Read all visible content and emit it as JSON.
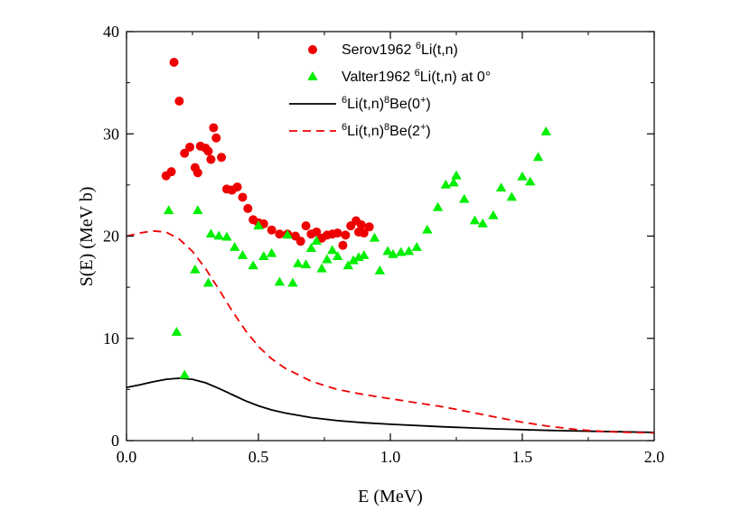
{
  "chart_data": {
    "type": "scatter",
    "title": "",
    "xlabel": "E (MeV)",
    "ylabel": "S(E) (MeV b)",
    "xlim": [
      0.0,
      2.0
    ],
    "ylim": [
      0,
      40
    ],
    "xticks": [
      0.0,
      0.5,
      1.0,
      1.5,
      2.0
    ],
    "xtick_labels": [
      "0.0",
      "0.5",
      "1.0",
      "1.5",
      "2.0"
    ],
    "yticks": [
      0,
      10,
      20,
      30,
      40
    ],
    "ytick_labels": [
      "0",
      "10",
      "20",
      "30",
      "40"
    ],
    "grid": false,
    "legend_position": "top-right",
    "series": [
      {
        "name": "Serov1962",
        "reaction": "Li(t,n)",
        "sup": "6",
        "legend_parts": [
          {
            "t": "Serov1962 ",
            "s": false
          },
          {
            "t": "6",
            "s": true
          },
          {
            "t": "Li(t,n)",
            "s": false
          }
        ],
        "kind": "scatter",
        "marker": "circle",
        "color": "#ee0000",
        "points": [
          [
            0.15,
            25.9
          ],
          [
            0.17,
            26.3
          ],
          [
            0.18,
            37.0
          ],
          [
            0.2,
            33.2
          ],
          [
            0.22,
            28.1
          ],
          [
            0.24,
            28.7
          ],
          [
            0.26,
            26.7
          ],
          [
            0.27,
            26.2
          ],
          [
            0.28,
            28.8
          ],
          [
            0.3,
            28.6
          ],
          [
            0.31,
            28.3
          ],
          [
            0.32,
            27.5
          ],
          [
            0.33,
            30.6
          ],
          [
            0.34,
            29.6
          ],
          [
            0.36,
            27.7
          ],
          [
            0.38,
            24.6
          ],
          [
            0.4,
            24.5
          ],
          [
            0.42,
            24.8
          ],
          [
            0.44,
            23.8
          ],
          [
            0.46,
            22.7
          ],
          [
            0.48,
            21.6
          ],
          [
            0.5,
            21.3
          ],
          [
            0.52,
            21.2
          ],
          [
            0.55,
            20.6
          ],
          [
            0.58,
            20.2
          ],
          [
            0.61,
            20.2
          ],
          [
            0.64,
            20.0
          ],
          [
            0.66,
            19.5
          ],
          [
            0.68,
            21.0
          ],
          [
            0.7,
            20.2
          ],
          [
            0.72,
            20.4
          ],
          [
            0.74,
            19.8
          ],
          [
            0.76,
            20.1
          ],
          [
            0.78,
            20.2
          ],
          [
            0.8,
            20.3
          ],
          [
            0.82,
            19.1
          ],
          [
            0.83,
            20.1
          ],
          [
            0.85,
            21.0
          ],
          [
            0.87,
            21.5
          ],
          [
            0.88,
            20.4
          ],
          [
            0.89,
            21.1
          ],
          [
            0.9,
            20.3
          ],
          [
            0.92,
            20.9
          ]
        ]
      },
      {
        "name": "Valter1962",
        "reaction": "Li(t,n) at 0°",
        "sup": "6",
        "legend_parts": [
          {
            "t": "Valter1962 ",
            "s": false
          },
          {
            "t": "6",
            "s": true
          },
          {
            "t": "Li(t,n) at 0°",
            "s": false
          }
        ],
        "kind": "scatter",
        "marker": "triangle",
        "color": "#00ee00",
        "points": [
          [
            0.16,
            22.5
          ],
          [
            0.19,
            10.6
          ],
          [
            0.22,
            6.4
          ],
          [
            0.26,
            16.7
          ],
          [
            0.27,
            22.5
          ],
          [
            0.31,
            15.4
          ],
          [
            0.32,
            20.2
          ],
          [
            0.35,
            20.0
          ],
          [
            0.38,
            19.9
          ],
          [
            0.41,
            18.9
          ],
          [
            0.44,
            18.1
          ],
          [
            0.48,
            17.1
          ],
          [
            0.5,
            21.0
          ],
          [
            0.52,
            18.0
          ],
          [
            0.55,
            18.3
          ],
          [
            0.58,
            15.5
          ],
          [
            0.61,
            20.1
          ],
          [
            0.63,
            15.4
          ],
          [
            0.65,
            17.3
          ],
          [
            0.68,
            17.2
          ],
          [
            0.7,
            18.8
          ],
          [
            0.72,
            19.5
          ],
          [
            0.74,
            16.8
          ],
          [
            0.76,
            17.7
          ],
          [
            0.78,
            18.6
          ],
          [
            0.8,
            18.0
          ],
          [
            0.84,
            17.1
          ],
          [
            0.86,
            17.6
          ],
          [
            0.88,
            17.9
          ],
          [
            0.9,
            18.1
          ],
          [
            0.94,
            19.8
          ],
          [
            0.96,
            16.6
          ],
          [
            0.99,
            18.5
          ],
          [
            1.01,
            18.2
          ],
          [
            1.04,
            18.4
          ],
          [
            1.07,
            18.5
          ],
          [
            1.1,
            18.9
          ],
          [
            1.14,
            20.6
          ],
          [
            1.18,
            22.8
          ],
          [
            1.21,
            25.0
          ],
          [
            1.24,
            25.2
          ],
          [
            1.25,
            25.9
          ],
          [
            1.28,
            23.6
          ],
          [
            1.32,
            21.5
          ],
          [
            1.35,
            21.2
          ],
          [
            1.39,
            22.0
          ],
          [
            1.42,
            24.7
          ],
          [
            1.46,
            23.8
          ],
          [
            1.5,
            25.8
          ],
          [
            1.53,
            25.3
          ],
          [
            1.56,
            27.7
          ],
          [
            1.59,
            30.2
          ]
        ]
      },
      {
        "name": "Li(t,n)Be(0+)",
        "legend_parts": [
          {
            "t": "6",
            "s": true
          },
          {
            "t": "Li(t,n)",
            "s": false
          },
          {
            "t": "8",
            "s": true
          },
          {
            "t": "Be(0",
            "s": false
          },
          {
            "t": "+",
            "s": true
          },
          {
            "t": ")",
            "s": false
          }
        ],
        "kind": "line",
        "dash": "solid",
        "color": "#000000",
        "points": [
          [
            0.0,
            5.2
          ],
          [
            0.05,
            5.45
          ],
          [
            0.1,
            5.75
          ],
          [
            0.15,
            6.0
          ],
          [
            0.2,
            6.1
          ],
          [
            0.25,
            6.0
          ],
          [
            0.3,
            5.65
          ],
          [
            0.35,
            5.1
          ],
          [
            0.4,
            4.5
          ],
          [
            0.45,
            3.9
          ],
          [
            0.5,
            3.4
          ],
          [
            0.55,
            3.0
          ],
          [
            0.6,
            2.7
          ],
          [
            0.7,
            2.25
          ],
          [
            0.8,
            1.95
          ],
          [
            0.9,
            1.75
          ],
          [
            1.0,
            1.6
          ],
          [
            1.2,
            1.35
          ],
          [
            1.4,
            1.15
          ],
          [
            1.6,
            1.0
          ],
          [
            1.8,
            0.9
          ],
          [
            2.0,
            0.8
          ]
        ]
      },
      {
        "name": "Li(t,n)Be(2+)",
        "legend_parts": [
          {
            "t": "6",
            "s": true
          },
          {
            "t": "Li(t,n)",
            "s": false
          },
          {
            "t": "8",
            "s": true
          },
          {
            "t": "Be(2",
            "s": false
          },
          {
            "t": "+",
            "s": true
          },
          {
            "t": ")",
            "s": false
          }
        ],
        "kind": "line",
        "dash": "dashed",
        "color": "#ee0000",
        "points": [
          [
            0.0,
            20.0
          ],
          [
            0.05,
            20.3
          ],
          [
            0.1,
            20.5
          ],
          [
            0.15,
            20.4
          ],
          [
            0.2,
            19.7
          ],
          [
            0.25,
            18.5
          ],
          [
            0.3,
            16.8
          ],
          [
            0.35,
            14.8
          ],
          [
            0.4,
            12.7
          ],
          [
            0.45,
            10.8
          ],
          [
            0.5,
            9.2
          ],
          [
            0.55,
            8.0
          ],
          [
            0.6,
            7.1
          ],
          [
            0.7,
            5.8
          ],
          [
            0.8,
            5.0
          ],
          [
            0.9,
            4.5
          ],
          [
            1.0,
            4.1
          ],
          [
            1.1,
            3.7
          ],
          [
            1.2,
            3.3
          ],
          [
            1.3,
            2.8
          ],
          [
            1.4,
            2.3
          ],
          [
            1.5,
            1.8
          ],
          [
            1.6,
            1.4
          ],
          [
            1.7,
            1.1
          ],
          [
            1.8,
            0.9
          ],
          [
            1.9,
            0.8
          ],
          [
            2.0,
            0.75
          ]
        ]
      }
    ]
  }
}
